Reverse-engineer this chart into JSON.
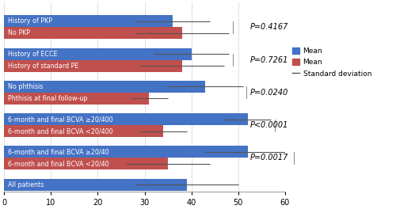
{
  "groups": [
    {
      "labels": [
        "No PKP",
        "History of PKP"
      ],
      "means": [
        38,
        36
      ],
      "sds": [
        10,
        8
      ],
      "colors": [
        "#c0504d",
        "#4472c4"
      ],
      "pvalue": "P=0.4167"
    },
    {
      "labels": [
        "History of standard PE",
        "History of ECCE"
      ],
      "means": [
        38,
        40
      ],
      "sds": [
        9,
        8
      ],
      "colors": [
        "#c0504d",
        "#4472c4"
      ],
      "pvalue": "P=0.7261"
    },
    {
      "labels": [
        "Phthisis at final follow-up",
        "No phthisis"
      ],
      "means": [
        31,
        43
      ],
      "sds": [
        4,
        8
      ],
      "colors": [
        "#c0504d",
        "#4472c4"
      ],
      "pvalue": "P=0.0240"
    },
    {
      "labels": [
        "6-month and final BCVA <20/400",
        "6-month and final BCVA ≥20/400"
      ],
      "means": [
        34,
        52
      ],
      "sds": [
        5,
        5
      ],
      "colors": [
        "#c0504d",
        "#4472c4"
      ],
      "pvalue": "P<0.0001"
    },
    {
      "labels": [
        "6-month and final BCVA <20/40",
        "6-month and final BCVA ≥20/40"
      ],
      "means": [
        35,
        52
      ],
      "sds": [
        9,
        9
      ],
      "colors": [
        "#c0504d",
        "#4472c4"
      ],
      "pvalue": "P=0.0017"
    },
    {
      "labels": [
        "All patients"
      ],
      "means": [
        39
      ],
      "sds": [
        11
      ],
      "colors": [
        "#4472c4"
      ],
      "pvalue": null
    }
  ],
  "xlim": [
    0,
    60
  ],
  "xticks": [
    0,
    10,
    20,
    30,
    40,
    50,
    60
  ],
  "blue_color": "#4472c4",
  "red_color": "#c0504d",
  "bg_color": "#ffffff",
  "grid_color": "#d3d3d3",
  "font_size": 5.8,
  "pvalue_fontsize": 7.0
}
